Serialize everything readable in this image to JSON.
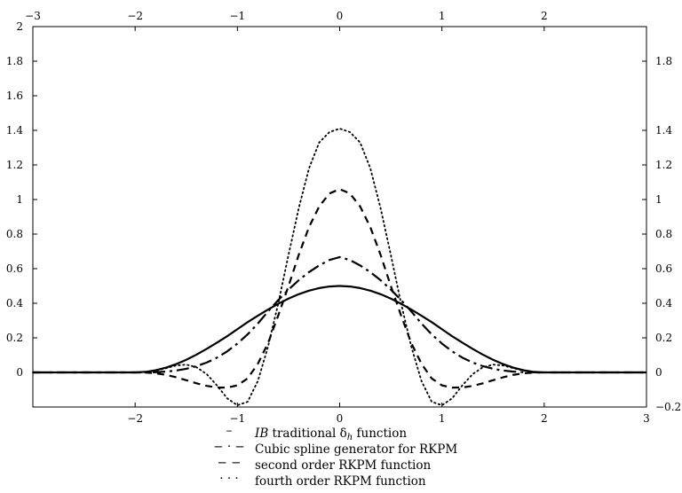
{
  "chart_data": {
    "type": "line",
    "title": "",
    "xlabel": "",
    "ylabel": "",
    "xlim": [
      -3,
      3
    ],
    "ylim": [
      -0.2,
      2
    ],
    "x_ticks_bottom": [
      -2,
      -1,
      0,
      1,
      2,
      3
    ],
    "x_ticks_top": [
      -3,
      -2,
      -1,
      0,
      1,
      2
    ],
    "y_ticks_left": [
      0,
      0.2,
      0.4,
      0.6,
      0.8,
      1,
      1.2,
      1.4,
      1.6,
      1.8,
      2
    ],
    "y_ticks_right": [
      -0.2,
      0,
      0.2,
      0.4,
      0.6,
      0.8,
      1,
      1.2,
      1.4,
      1.8
    ],
    "tick_labels": {
      "bottom": [
        "−2",
        "−1",
        "0",
        "1",
        "2",
        "3"
      ],
      "top": [
        "−3",
        "−2",
        "−1",
        "0",
        "1",
        "2"
      ],
      "left": [
        "0",
        "0.2",
        "0.4",
        "0.6",
        "0.8",
        "1",
        "1.2",
        "1.4",
        "1.6",
        "1.8",
        "2"
      ],
      "right": [
        "−0.2",
        "0",
        "0.2",
        "0.4",
        "0.6",
        "0.8",
        "1",
        "1.2",
        "1.4",
        "1.8"
      ]
    },
    "grid": false,
    "legend_position": "below",
    "series": [
      {
        "legend_symbol": "–",
        "legend_label_italic": "IB",
        "legend_label_rest": " traditional δ",
        "legend_label_sub": "h",
        "legend_label_tail": " function",
        "style": "solid",
        "x": [
          -3,
          -2.5,
          -2,
          -1.9,
          -1.8,
          -1.7,
          -1.6,
          -1.5,
          -1.4,
          -1.3,
          -1.2,
          -1.1,
          -1,
          -0.9,
          -0.8,
          -0.7,
          -0.6,
          -0.5,
          -0.4,
          -0.3,
          -0.2,
          -0.1,
          0,
          0.1,
          0.2,
          0.3,
          0.4,
          0.5,
          0.6,
          0.7,
          0.8,
          0.9,
          1,
          1.1,
          1.2,
          1.3,
          1.4,
          1.5,
          1.6,
          1.7,
          1.8,
          1.9,
          2,
          2.5,
          3
        ],
        "y": [
          0,
          0,
          0,
          0.0031,
          0.0122,
          0.0273,
          0.0477,
          0.0732,
          0.1029,
          0.1361,
          0.1719,
          0.2093,
          0.25,
          0.2907,
          0.3281,
          0.3639,
          0.3971,
          0.4268,
          0.4523,
          0.4727,
          0.4878,
          0.4969,
          0.5,
          0.4969,
          0.4878,
          0.4727,
          0.4523,
          0.4268,
          0.3971,
          0.3639,
          0.3281,
          0.2907,
          0.25,
          0.2093,
          0.1719,
          0.1361,
          0.1029,
          0.0732,
          0.0477,
          0.0273,
          0.0122,
          0.0031,
          0,
          0,
          0
        ]
      },
      {
        "legend_symbol": "− · −",
        "legend_label": "Cubic spline generator for RKPM",
        "style": "dashdot",
        "x": [
          -3,
          -2.5,
          -2,
          -1.9,
          -1.8,
          -1.7,
          -1.6,
          -1.5,
          -1.4,
          -1.3,
          -1.2,
          -1.1,
          -1,
          -0.9,
          -0.8,
          -0.7,
          -0.6,
          -0.5,
          -0.4,
          -0.3,
          -0.2,
          -0.1,
          0,
          0.1,
          0.2,
          0.3,
          0.4,
          0.5,
          0.6,
          0.7,
          0.8,
          0.9,
          1,
          1.1,
          1.2,
          1.3,
          1.4,
          1.5,
          1.6,
          1.7,
          1.8,
          1.9,
          2,
          2.5,
          3
        ],
        "y": [
          0,
          0,
          0,
          0.0002,
          0.0013,
          0.0045,
          0.0107,
          0.0208,
          0.036,
          0.0572,
          0.0853,
          0.1215,
          0.1667,
          0.2202,
          0.2827,
          0.353,
          0.4187,
          0.4792,
          0.5333,
          0.58,
          0.6187,
          0.6502,
          0.6667,
          0.6502,
          0.6187,
          0.58,
          0.5333,
          0.4792,
          0.4187,
          0.353,
          0.2827,
          0.2202,
          0.1667,
          0.1215,
          0.0853,
          0.0572,
          0.036,
          0.0208,
          0.0107,
          0.0045,
          0.0013,
          0.0002,
          0,
          0,
          0
        ]
      },
      {
        "legend_symbol": "− −",
        "legend_label": "second order RKPM function",
        "style": "dashed",
        "x": [
          -3,
          -2.5,
          -2,
          -1.9,
          -1.8,
          -1.7,
          -1.6,
          -1.5,
          -1.4,
          -1.3,
          -1.2,
          -1.1,
          -1,
          -0.9,
          -0.8,
          -0.7,
          -0.6,
          -0.5,
          -0.4,
          -0.3,
          -0.2,
          -0.1,
          0,
          0.1,
          0.2,
          0.3,
          0.4,
          0.5,
          0.6,
          0.7,
          0.8,
          0.9,
          1,
          1.1,
          1.2,
          1.3,
          1.4,
          1.5,
          1.6,
          1.7,
          1.8,
          1.9,
          2,
          2.5,
          3
        ],
        "y": [
          0,
          0,
          0,
          -0.001,
          -0.005,
          -0.014,
          -0.028,
          -0.045,
          -0.063,
          -0.078,
          -0.087,
          -0.088,
          -0.075,
          -0.035,
          0.05,
          0.17,
          0.33,
          0.5,
          0.68,
          0.84,
          0.96,
          1.035,
          1.06,
          1.035,
          0.96,
          0.84,
          0.68,
          0.5,
          0.33,
          0.17,
          0.05,
          -0.035,
          -0.075,
          -0.088,
          -0.087,
          -0.078,
          -0.063,
          -0.045,
          -0.028,
          -0.014,
          -0.005,
          -0.001,
          0,
          0,
          0
        ]
      },
      {
        "legend_symbol": "· · ·",
        "legend_label": "fourth order RKPM function",
        "style": "dotted",
        "x": [
          -3,
          -2.5,
          -2,
          -1.9,
          -1.8,
          -1.7,
          -1.6,
          -1.5,
          -1.4,
          -1.3,
          -1.2,
          -1.1,
          -1,
          -0.9,
          -0.8,
          -0.7,
          -0.6,
          -0.5,
          -0.4,
          -0.3,
          -0.2,
          -0.1,
          0,
          0.1,
          0.2,
          0.3,
          0.4,
          0.5,
          0.6,
          0.7,
          0.8,
          0.9,
          1,
          1.1,
          1.2,
          1.3,
          1.4,
          1.5,
          1.6,
          1.7,
          1.8,
          1.9,
          2,
          2.5,
          3
        ],
        "y": [
          0,
          0,
          0,
          0.002,
          0.01,
          0.024,
          0.04,
          0.045,
          0.03,
          -0.01,
          -0.075,
          -0.15,
          -0.19,
          -0.17,
          -0.05,
          0.15,
          0.4,
          0.68,
          0.95,
          1.18,
          1.33,
          1.39,
          1.41,
          1.39,
          1.33,
          1.18,
          0.95,
          0.68,
          0.4,
          0.15,
          -0.05,
          -0.17,
          -0.19,
          -0.15,
          -0.075,
          -0.01,
          0.03,
          0.045,
          0.04,
          0.024,
          0.01,
          0.002,
          0,
          0,
          0
        ]
      }
    ]
  }
}
